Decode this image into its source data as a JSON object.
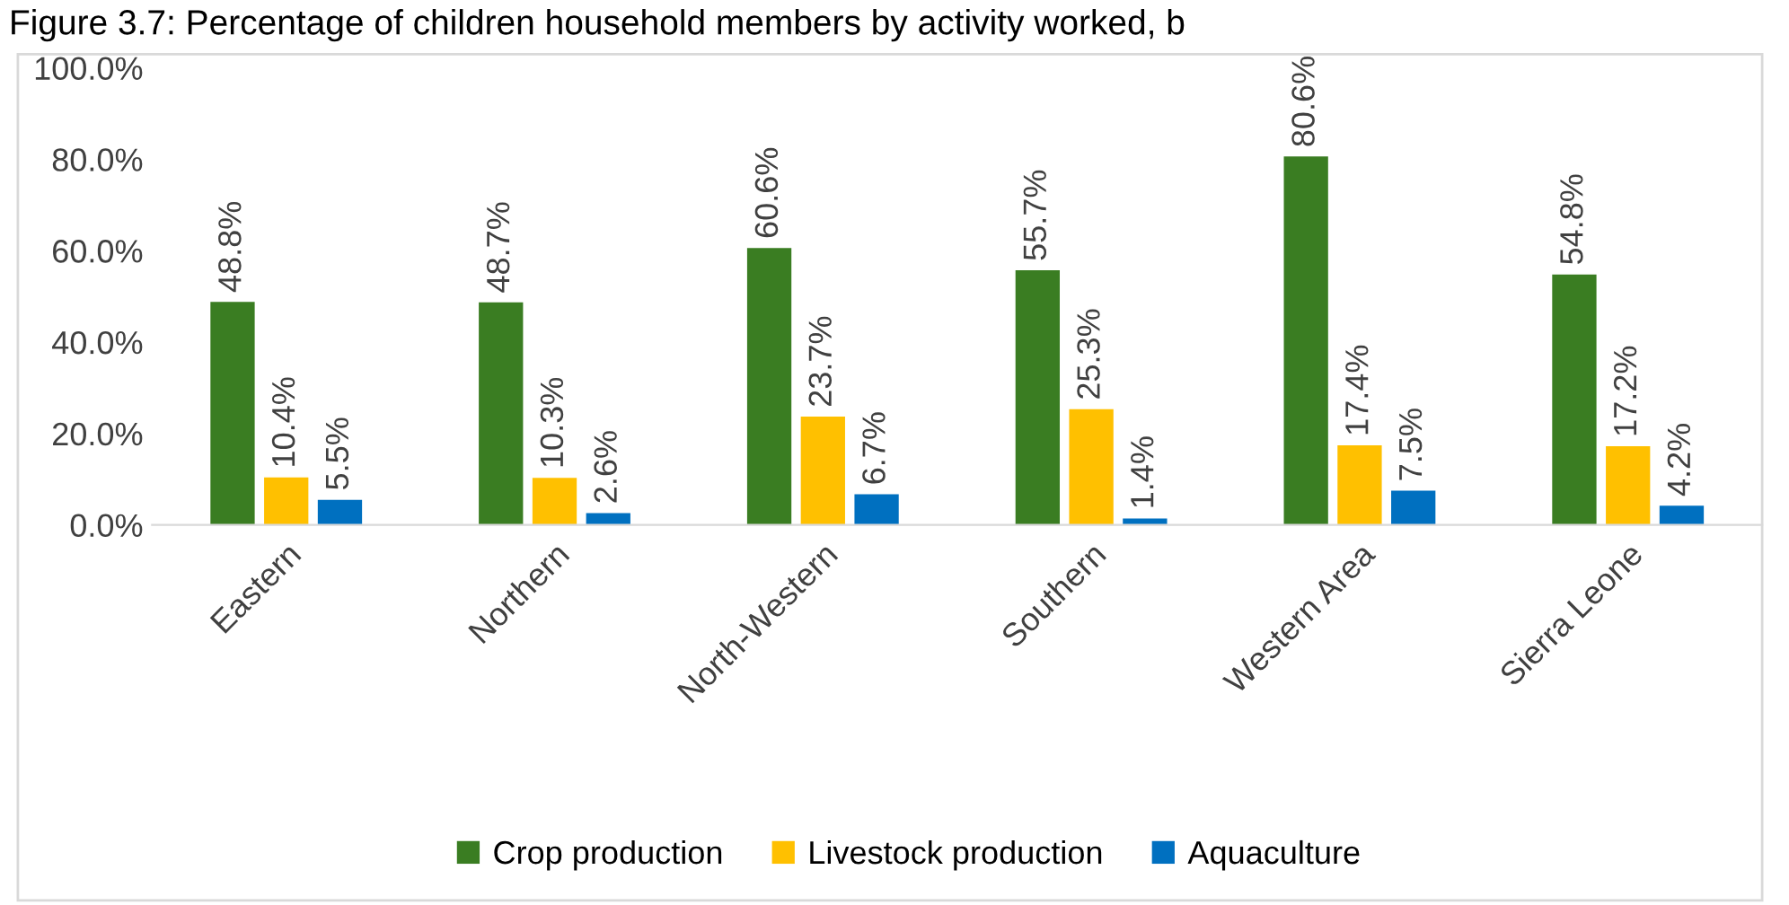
{
  "chart_data": {
    "type": "bar",
    "title": "Figure 3.7: Percentage of children household members by activity worked, b",
    "categories": [
      "Eastern",
      "Northern",
      "North-Western",
      "Southern",
      "Western Area",
      "Sierra Leone"
    ],
    "series": [
      {
        "name": "Crop production",
        "color": "#3a7d22",
        "values": [
          48.8,
          48.7,
          60.6,
          55.7,
          80.6,
          54.8
        ],
        "value_labels": [
          "48.8%",
          "48.7%",
          "60.6%",
          "55.7%",
          "80.6%",
          "54.8%"
        ]
      },
      {
        "name": "Livestock production",
        "color": "#ffc000",
        "values": [
          10.4,
          10.3,
          23.7,
          25.3,
          17.4,
          17.2
        ],
        "value_labels": [
          "10.4%",
          "10.3%",
          "23.7%",
          "25.3%",
          "17.4%",
          "17.2%"
        ]
      },
      {
        "name": "Aquaculture",
        "color": "#0070c0",
        "values": [
          5.5,
          2.6,
          6.7,
          1.4,
          7.5,
          4.2
        ],
        "value_labels": [
          "5.5%",
          "2.6%",
          "6.7%",
          "1.4%",
          "7.5%",
          "4.2%"
        ]
      }
    ],
    "ylim": [
      0,
      100
    ],
    "yticks": [
      {
        "value": 0,
        "label": "0.0%"
      },
      {
        "value": 20,
        "label": "20.0%"
      },
      {
        "value": 40,
        "label": "40.0%"
      },
      {
        "value": 60,
        "label": "60.0%"
      },
      {
        "value": 80,
        "label": "80.0%"
      },
      {
        "value": 100,
        "label": "100.0%"
      }
    ],
    "grid": false,
    "legend": "bottom"
  }
}
